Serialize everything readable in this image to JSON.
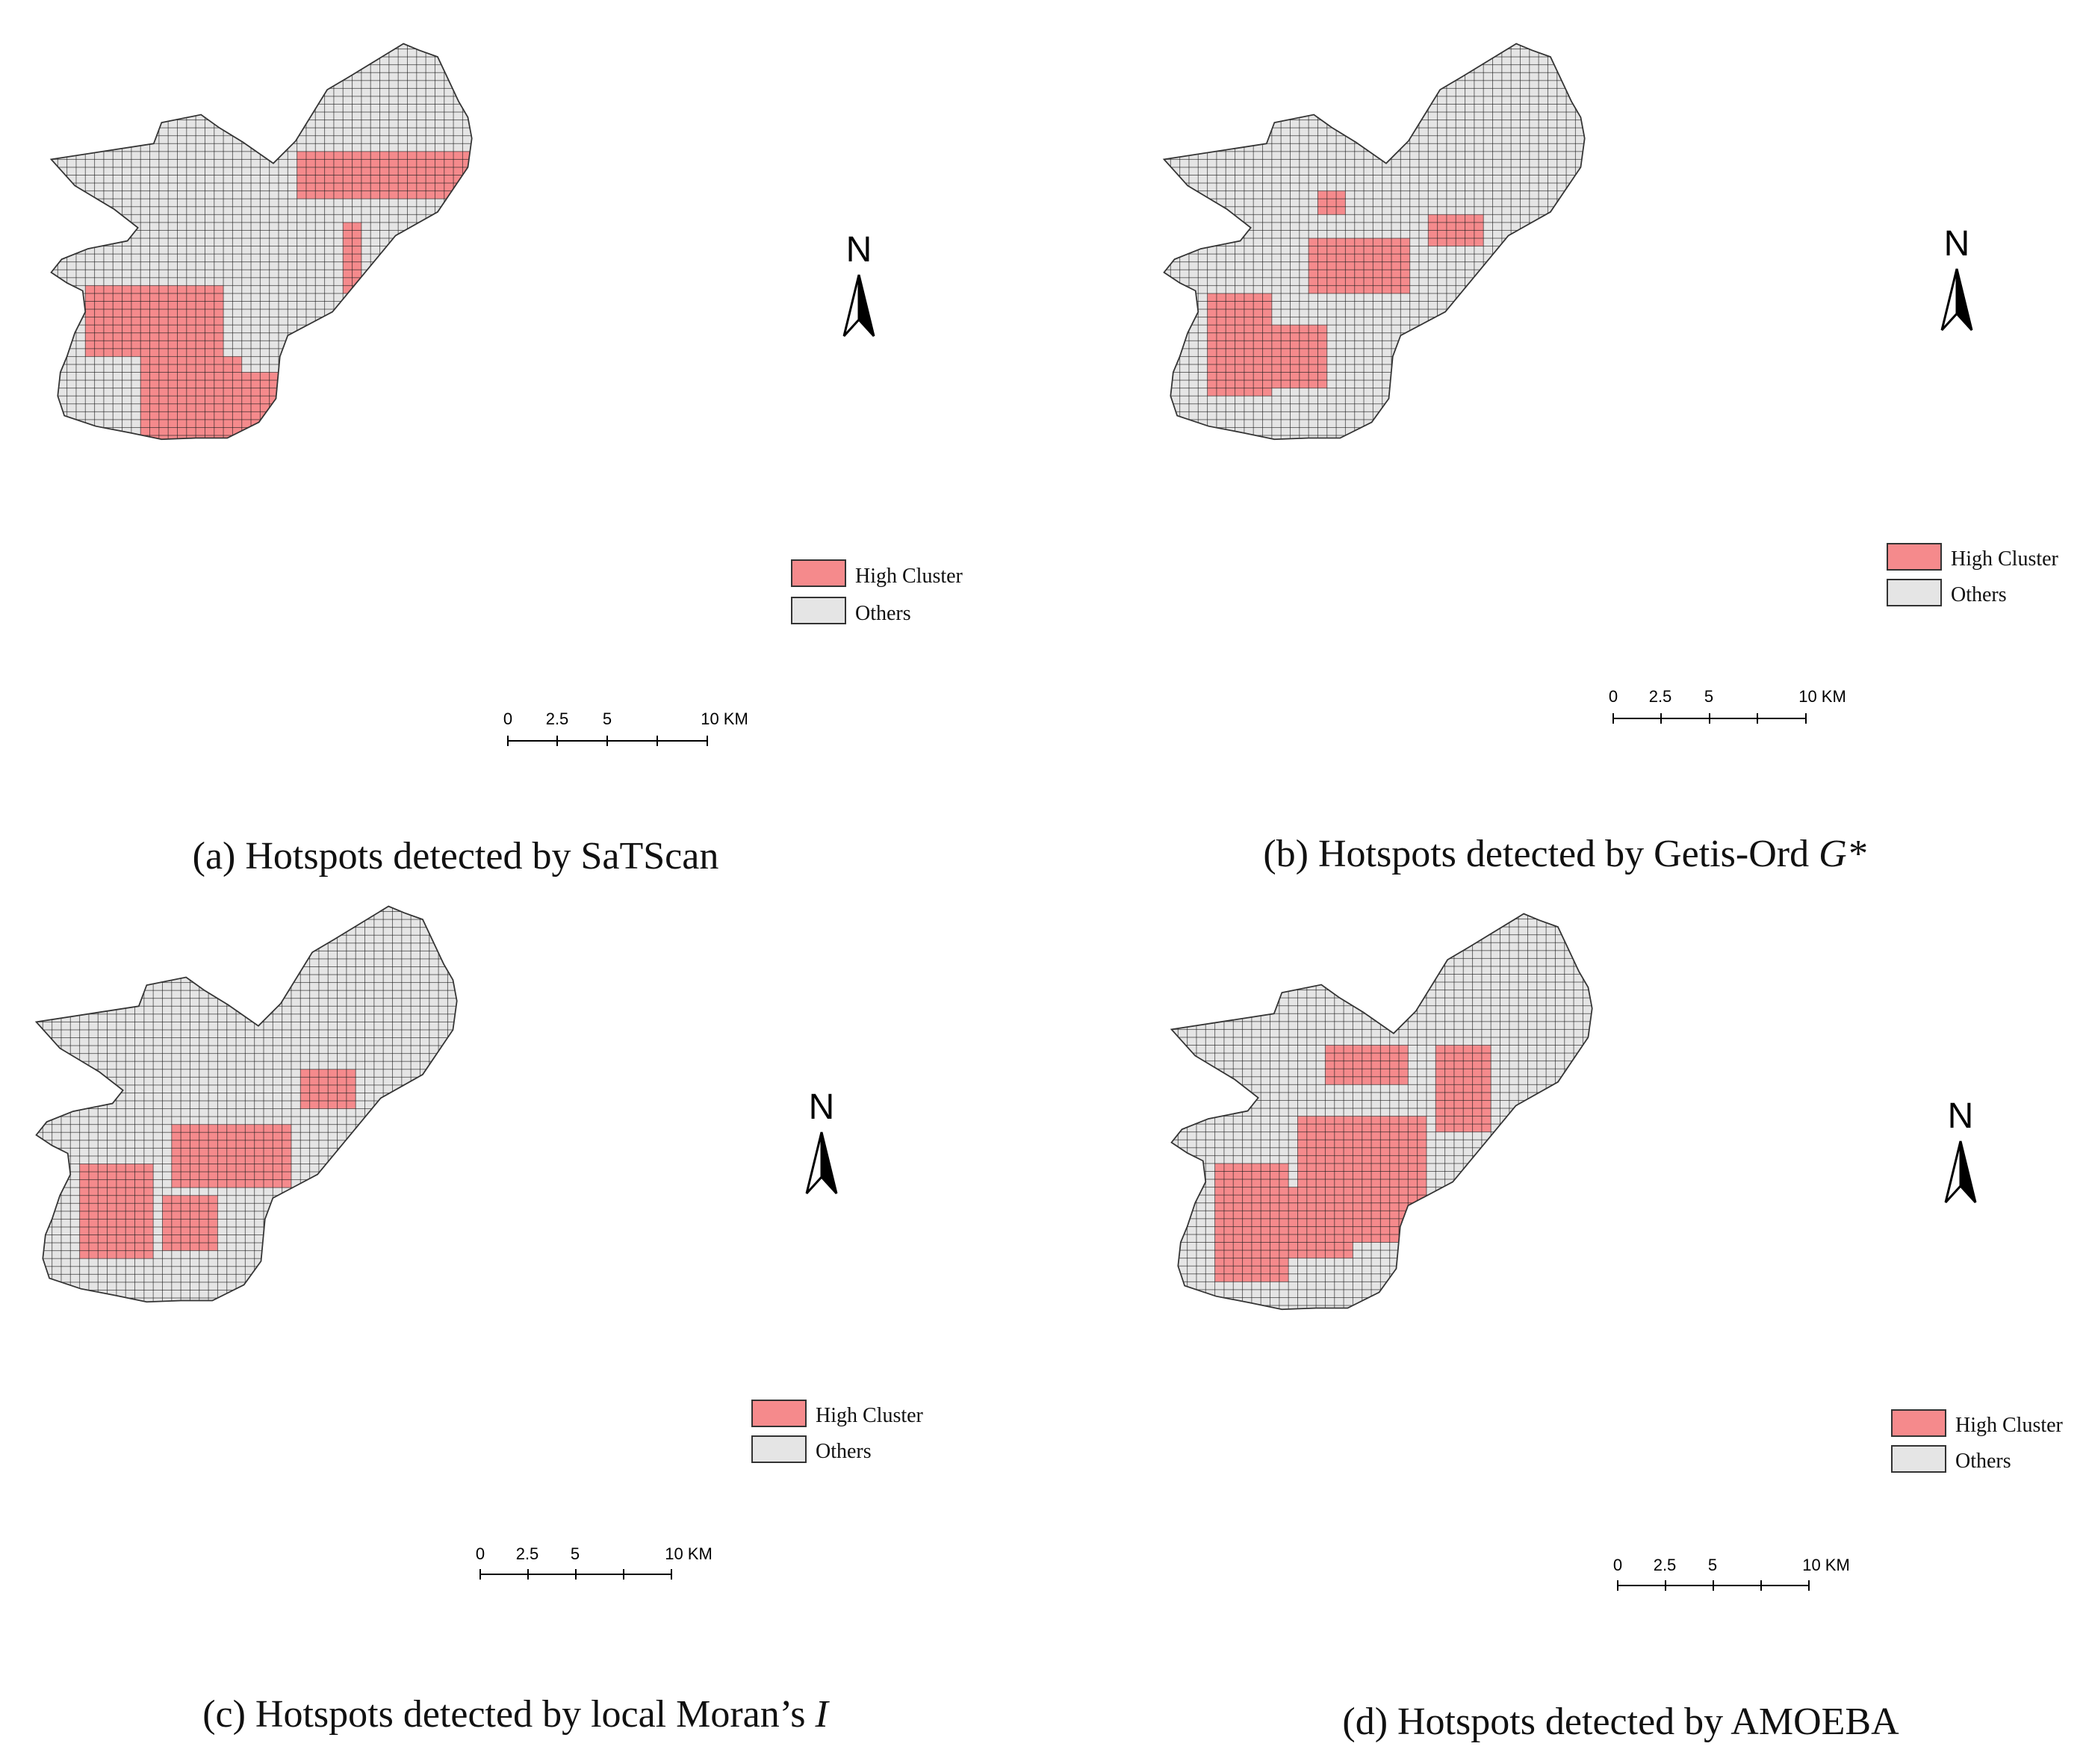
{
  "colors": {
    "high_cluster": "#f58a8c",
    "others": "#e5e5e5",
    "grid_line": "#1a1a1a"
  },
  "panels": [
    {
      "id": "a",
      "caption_main": "(a) Hotspots detected by SaTScan",
      "caption_var": "",
      "legend": {
        "high": "High Cluster",
        "others": "Others"
      },
      "north": "N",
      "scale": {
        "labels": [
          "0",
          "2.5",
          "5",
          "10 KM"
        ]
      },
      "hotspots": [
        [
          32,
          33,
          23,
          31
        ],
        [
          27,
          48,
          14,
          19
        ],
        [
          33,
          48,
          40,
          48
        ],
        [
          4,
          18,
          31,
          39
        ],
        [
          10,
          20,
          40,
          52
        ],
        [
          20,
          33,
          42,
          53
        ]
      ]
    },
    {
      "id": "b",
      "caption_main": "(b) Hotspots detected by Getis-Ord ",
      "caption_var": "G*",
      "legend": {
        "high": "High Cluster",
        "others": "Others"
      },
      "north": "N",
      "scale": {
        "labels": [
          "0",
          "2.5",
          "5",
          "10 KM"
        ]
      },
      "hotspots": [
        [
          17,
          19,
          19,
          21
        ],
        [
          29,
          34,
          22,
          25
        ],
        [
          16,
          26,
          25,
          31
        ],
        [
          5,
          11,
          32,
          44
        ],
        [
          12,
          17,
          36,
          43
        ]
      ]
    },
    {
      "id": "c",
      "caption_main": "(c) Hotspots detected by local Moran’s ",
      "caption_var": "I",
      "legend": {
        "high": "High Cluster",
        "others": "Others"
      },
      "north": "N",
      "scale": {
        "labels": [
          "0",
          "2.5",
          "5",
          "10 KM"
        ]
      },
      "hotspots": [
        [
          29,
          34,
          21,
          25
        ],
        [
          15,
          27,
          28,
          35
        ],
        [
          5,
          12,
          33,
          44
        ],
        [
          14,
          19,
          37,
          43
        ]
      ]
    },
    {
      "id": "d",
      "caption_main": "(d) Hotspots detected by AMOEBA",
      "caption_var": "",
      "legend": {
        "high": "High Cluster",
        "others": "Others"
      },
      "north": "N",
      "scale": {
        "labels": [
          "0",
          "2.5",
          "5",
          "10 KM"
        ]
      },
      "hotspots": [
        [
          17,
          25,
          17,
          21
        ],
        [
          29,
          34,
          17,
          27
        ],
        [
          14,
          27,
          26,
          41
        ],
        [
          5,
          12,
          32,
          46
        ],
        [
          12,
          19,
          35,
          43
        ]
      ]
    }
  ]
}
